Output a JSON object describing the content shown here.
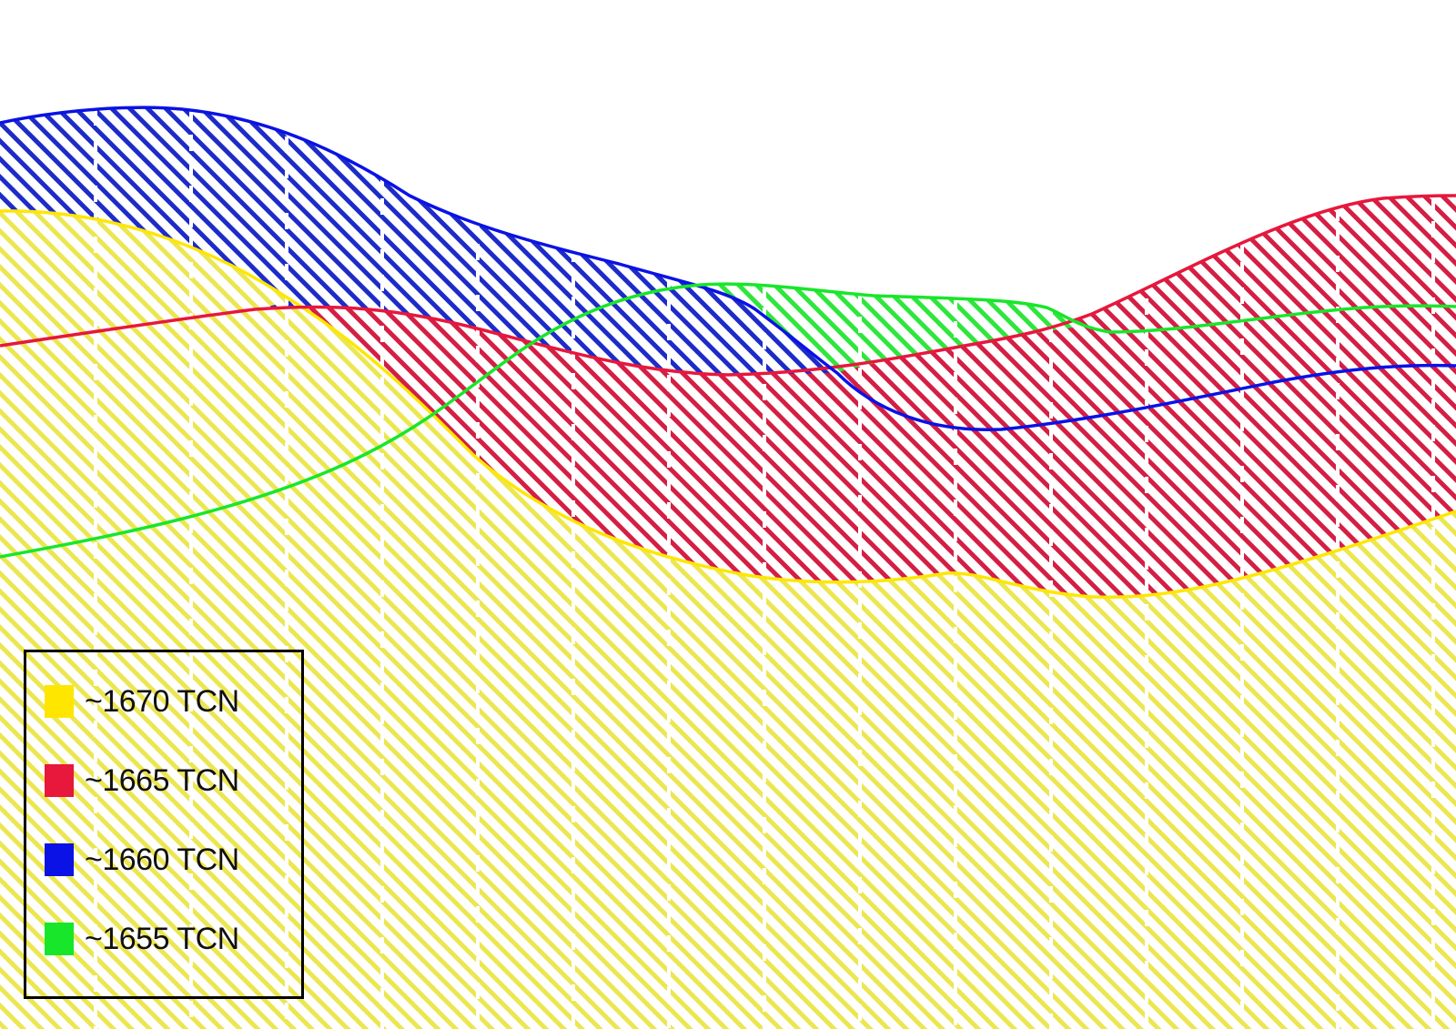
{
  "legend": {
    "items": [
      {
        "label": "~1670 TCN",
        "color": "#ffe600"
      },
      {
        "label": "~1665 TCN",
        "color": "#e8173c"
      },
      {
        "label": "~1660 TCN",
        "color": "#0a12e6"
      },
      {
        "label": "~1655 TCN",
        "color": "#18e62a"
      }
    ]
  },
  "colors": {
    "yellow_hatch": "#ece650",
    "red_hatch": "#d41f45",
    "blue_hatch": "#1d2bc8",
    "green_hatch": "#2ee63c",
    "grid_dash": "#ffffff"
  }
}
